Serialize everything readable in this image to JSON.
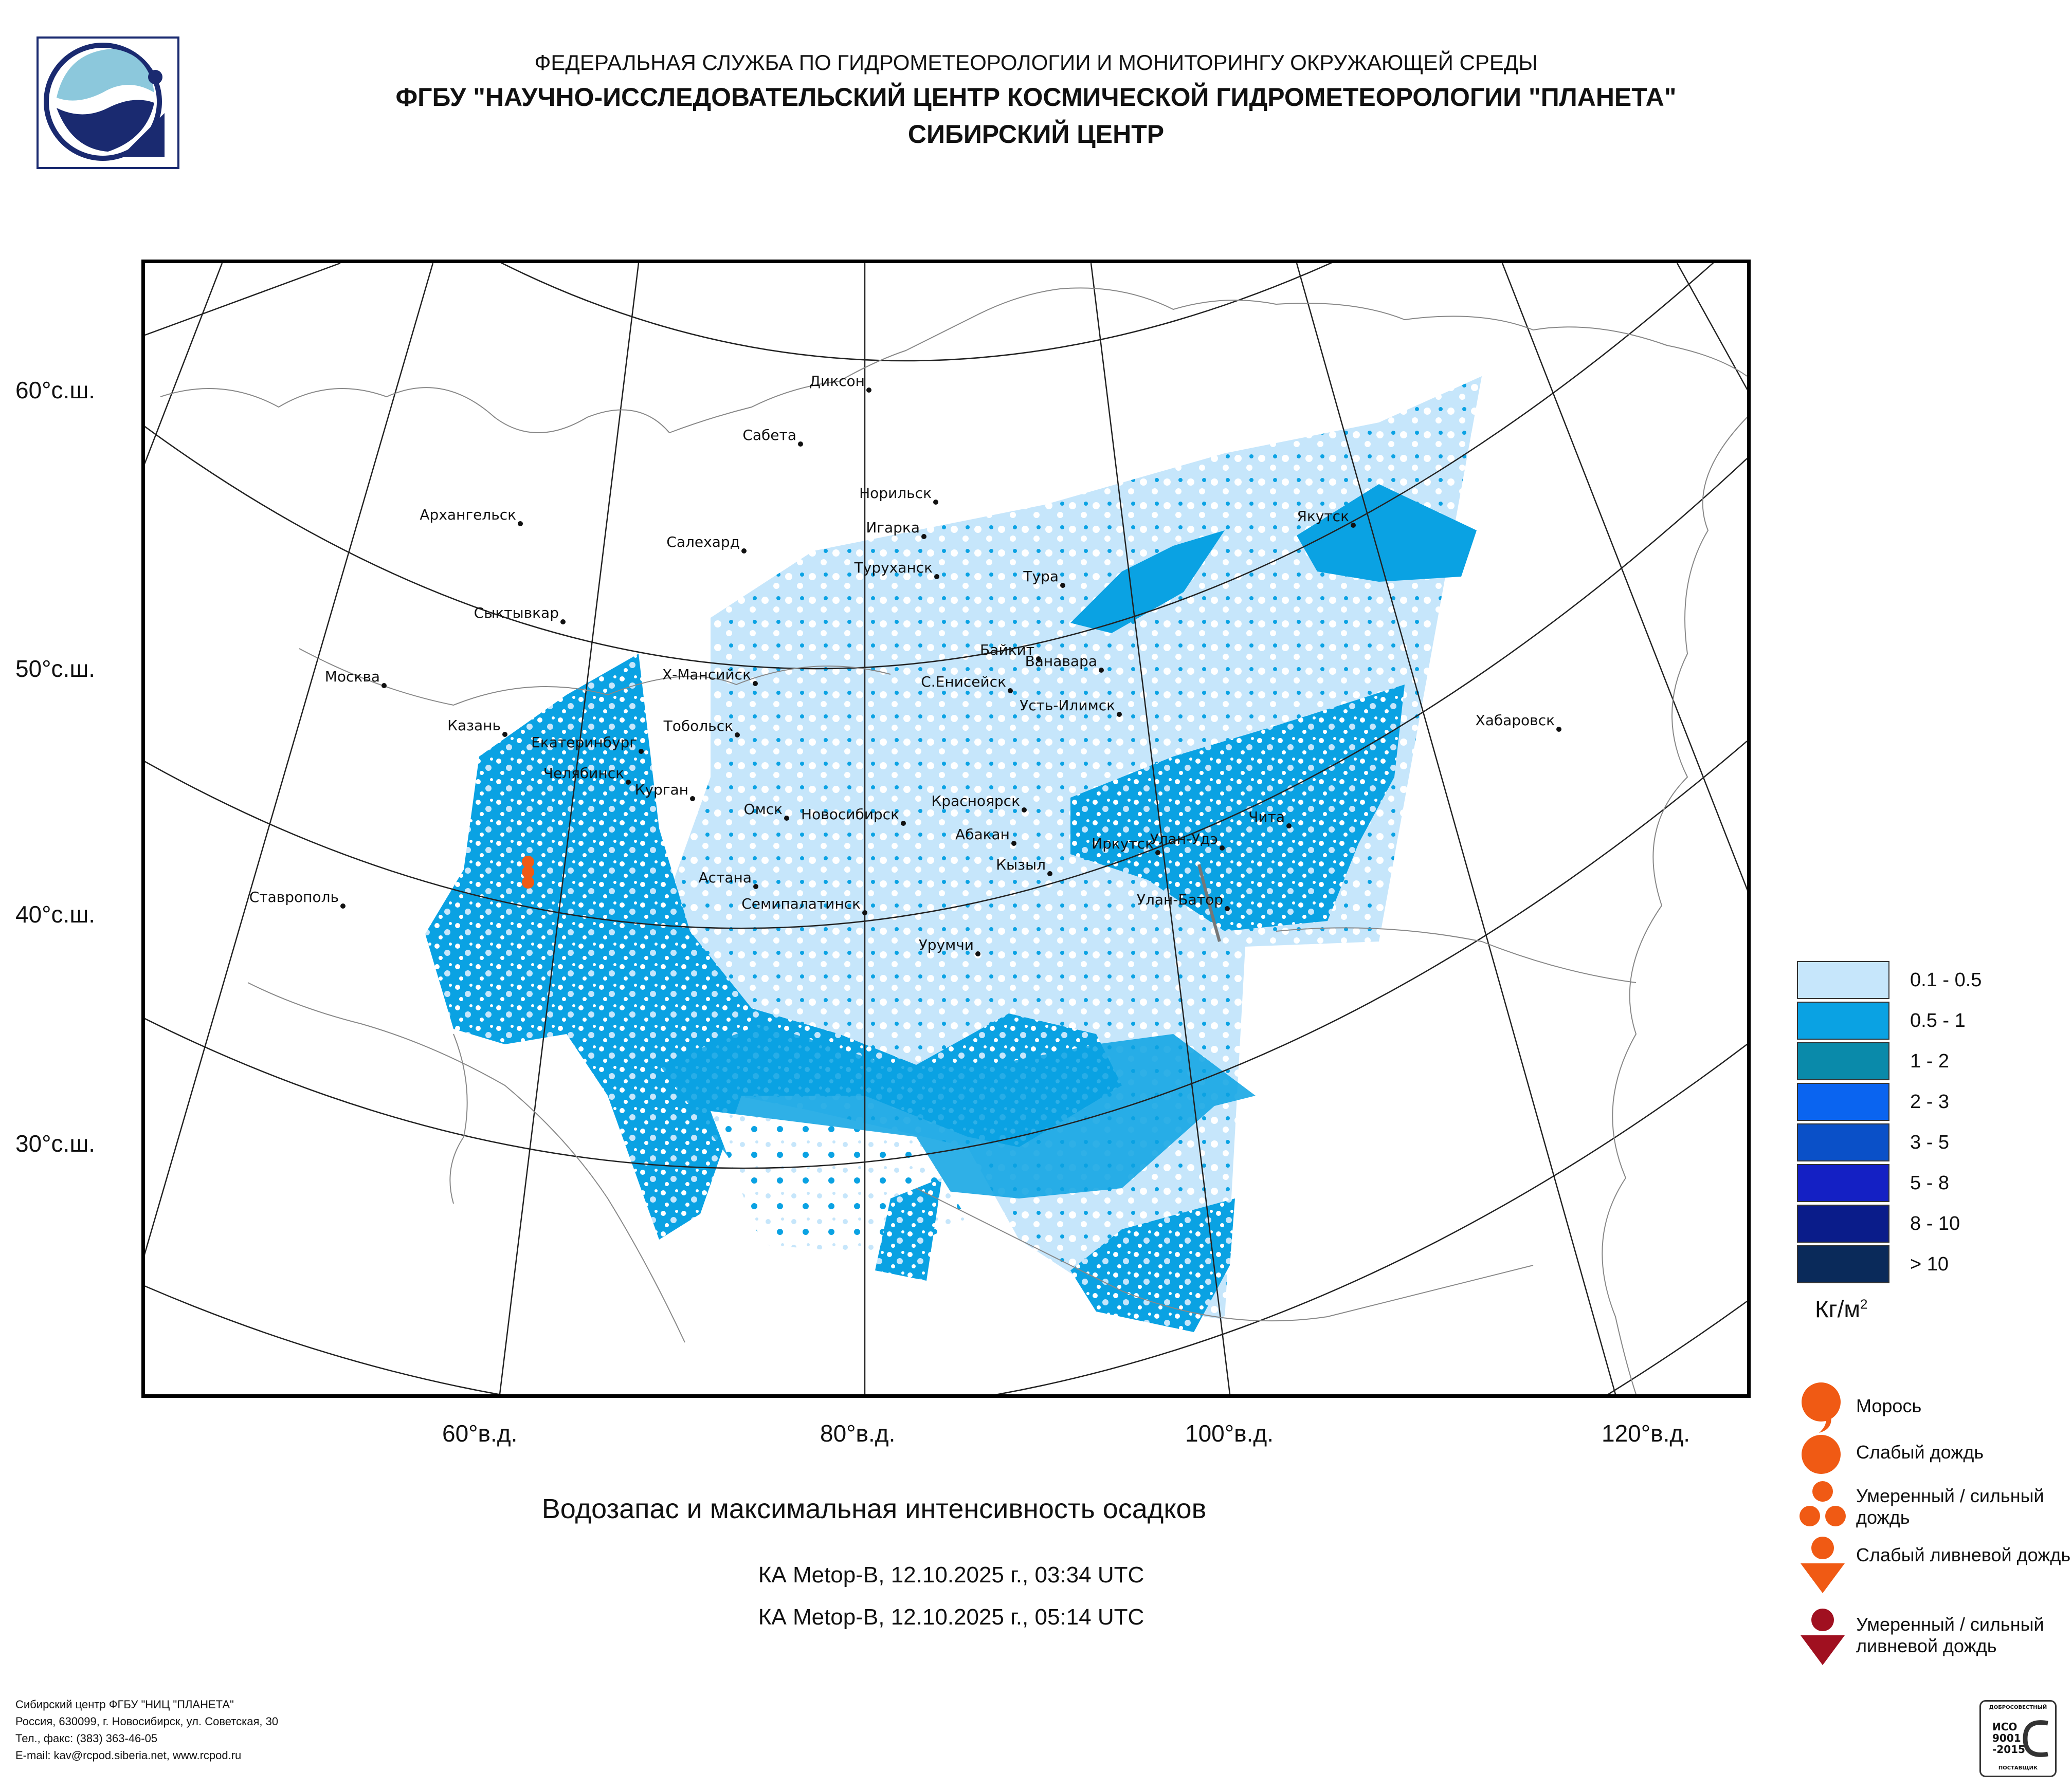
{
  "header": {
    "line1": "ФЕДЕРАЛЬНАЯ СЛУЖБА ПО ГИДРОМЕТЕОРОЛОГИИ И МОНИТОРИНГУ ОКРУЖАЮЩЕЙ СРЕДЫ",
    "line2": "ФГБУ \"НАУЧНО-ИССЛЕДОВАТЕЛЬСКИЙ ЦЕНТР КОСМИЧЕСКОЙ ГИДРОМЕТЕОРОЛОГИИ \"ПЛАНЕТА\"",
    "line3": "СИБИРСКИЙ ЦЕНТР"
  },
  "map": {
    "lat_labels": [
      "60°с.ш.",
      "50°с.ш.",
      "40°с.ш.",
      "30°с.ш."
    ],
    "lon_labels": [
      "60°в.д.",
      "80°в.д.",
      "100°в.д.",
      "120°в.д."
    ],
    "cities": [
      "Диксон",
      "Сабета",
      "Норильск",
      "Архангельск",
      "Салехард",
      "Игарка",
      "Туруханск",
      "Тура",
      "Якутск",
      "Сыктывкар",
      "Байкит",
      "Ванавара",
      "Москва",
      "Х-Мансийск",
      "С.Енисейск",
      "Усть-Илимск",
      "Казань",
      "Екатеринбург",
      "Тобольск",
      "Хабаровск",
      "Челябинск",
      "Курган",
      "Красноярск",
      "Омск",
      "Новосибирск",
      "Чита",
      "Абакан",
      "Улан-Удэ",
      "Иркутск",
      "Кызыл",
      "Астана",
      "Ставрополь",
      "Семипалатинск",
      "Улан-Батор",
      "Урумчи"
    ]
  },
  "legend": {
    "classes": [
      {
        "label": "0.1 - 0.5",
        "color": "#c6e6fb"
      },
      {
        "label": "0.5 - 1",
        "color": "#0aa2e3"
      },
      {
        "label": "1 - 2",
        "color": "#0a8aaa"
      },
      {
        "label": "2 - 3",
        "color": "#0a64f0"
      },
      {
        "label": "3 - 5",
        "color": "#0a50c8"
      },
      {
        "label": "5 - 8",
        "color": "#1420c4"
      },
      {
        "label": "8 - 10",
        "color": "#0a1c8a"
      },
      {
        "label": "> 10",
        "color": "#0a2a5a"
      }
    ],
    "unit": "Кг/м",
    "unit_sup": "2"
  },
  "precip_legend": [
    {
      "label": "Морось",
      "icon": "drizzle-icon"
    },
    {
      "label": "Слабый дождь",
      "icon": "light-rain-icon"
    },
    {
      "label": "Умеренный / сильный дождь",
      "icon": "moderate-rain-icon"
    },
    {
      "label": "Слабый ливневой дождь",
      "icon": "light-shower-icon"
    },
    {
      "label": "Умеренный / сильный ливневой дождь",
      "icon": "heavy-shower-icon"
    }
  ],
  "caption": {
    "title": "Водозапас и максимальная интенсивность осадков",
    "pass1": "КА Metop-B, 12.10.2025 г., 03:34 UTC",
    "pass2": "КА Metop-B, 12.10.2025 г., 05:14 UTC"
  },
  "footer": {
    "line1": "Сибирский центр ФГБУ \"НИЦ \"ПЛАНЕТА\"",
    "line2": "Россия, 630099, г. Новосибирск, ул. Советская, 30",
    "line3": "Тел., факс: (383) 363-46-05",
    "line4": "E-mail: kav@rcpod.siberia.net, www.rcpod.ru"
  },
  "iso_badge": {
    "top": "ДОБРОСОВЕСТНЫЙ",
    "l1": "ИСО",
    "l2": "9001",
    "l3": "-2015",
    "bottom": "ПОСТАВЩИК"
  },
  "colors": {
    "accent_orange": "#f05a14",
    "dark_red": "#a01020",
    "logo_blue": "#1a2a70",
    "logo_light": "#8cc8dc"
  }
}
